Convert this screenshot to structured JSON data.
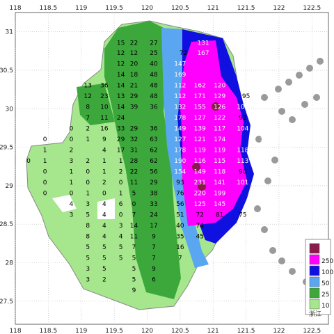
{
  "map": {
    "x_ticks": [
      "118",
      "118.5",
      "119",
      "119.5",
      "120",
      "120.5",
      "121",
      "121.5",
      "122",
      "122.5"
    ],
    "y_ticks": [
      "31",
      "30.5",
      "30",
      "29.5",
      "29",
      "28.5",
      "28",
      "27.5"
    ],
    "lon_range": [
      118,
      122.75
    ],
    "lat_range": [
      27.2,
      31.25
    ],
    "grid": true
  },
  "legend": {
    "items": [
      {
        "label": "",
        "color": "#8b1a4a"
      },
      {
        "label": "250",
        "color": "#ff00ff"
      },
      {
        "label": "100",
        "color": "#1010e0"
      },
      {
        "label": "50",
        "color": "#5aa6f0"
      },
      {
        "label": "25",
        "color": "#3ca83c"
      },
      {
        "label": "10",
        "color": "#a6e68c"
      }
    ]
  },
  "values": [
    {
      "t": "15",
      "lon": 119.6,
      "lat": 30.85
    },
    {
      "t": "22",
      "lon": 119.8,
      "lat": 30.85
    },
    {
      "t": "27",
      "lon": 120.1,
      "lat": 30.85
    },
    {
      "t": "131",
      "lon": 120.85,
      "lat": 30.85
    },
    {
      "t": "12",
      "lon": 119.6,
      "lat": 30.72
    },
    {
      "t": "12",
      "lon": 119.8,
      "lat": 30.72
    },
    {
      "t": "25",
      "lon": 120.1,
      "lat": 30.72
    },
    {
      "t": "72",
      "lon": 120.55,
      "lat": 30.72
    },
    {
      "t": "167",
      "lon": 120.85,
      "lat": 30.72
    },
    {
      "t": "12",
      "lon": 119.6,
      "lat": 30.58
    },
    {
      "t": "20",
      "lon": 119.8,
      "lat": 30.58
    },
    {
      "t": "40",
      "lon": 120.1,
      "lat": 30.58
    },
    {
      "t": "147",
      "lon": 120.5,
      "lat": 30.58
    },
    {
      "t": "14",
      "lon": 119.6,
      "lat": 30.44
    },
    {
      "t": "18",
      "lon": 119.8,
      "lat": 30.44
    },
    {
      "t": "48",
      "lon": 120.1,
      "lat": 30.44
    },
    {
      "t": "169",
      "lon": 120.5,
      "lat": 30.44
    },
    {
      "t": "13",
      "lon": 119.1,
      "lat": 30.3
    },
    {
      "t": "36",
      "lon": 119.35,
      "lat": 30.3
    },
    {
      "t": "14",
      "lon": 119.6,
      "lat": 30.3
    },
    {
      "t": "21",
      "lon": 119.8,
      "lat": 30.3
    },
    {
      "t": "48",
      "lon": 120.1,
      "lat": 30.3
    },
    {
      "t": "112",
      "lon": 120.5,
      "lat": 30.3
    },
    {
      "t": "162",
      "lon": 120.8,
      "lat": 30.3
    },
    {
      "t": "120",
      "lon": 121.1,
      "lat": 30.3
    },
    {
      "t": "12",
      "lon": 119.1,
      "lat": 30.16
    },
    {
      "t": "23",
      "lon": 119.35,
      "lat": 30.16
    },
    {
      "t": "13",
      "lon": 119.6,
      "lat": 30.16
    },
    {
      "t": "29",
      "lon": 119.8,
      "lat": 30.16
    },
    {
      "t": "48",
      "lon": 120.1,
      "lat": 30.16
    },
    {
      "t": "112",
      "lon": 120.5,
      "lat": 30.16
    },
    {
      "t": "171",
      "lon": 120.8,
      "lat": 30.16
    },
    {
      "t": "129",
      "lon": 121.1,
      "lat": 30.16
    },
    {
      "t": "95",
      "lon": 121.5,
      "lat": 30.16
    },
    {
      "t": "8",
      "lon": 119.1,
      "lat": 30.02
    },
    {
      "t": "10",
      "lon": 119.35,
      "lat": 30.02
    },
    {
      "t": "14",
      "lon": 119.6,
      "lat": 30.02
    },
    {
      "t": "39",
      "lon": 119.8,
      "lat": 30.02
    },
    {
      "t": "36",
      "lon": 120.1,
      "lat": 30.02
    },
    {
      "t": "132",
      "lon": 120.5,
      "lat": 30.02
    },
    {
      "t": "155",
      "lon": 120.8,
      "lat": 30.02
    },
    {
      "t": "126",
      "lon": 121.1,
      "lat": 30.02
    },
    {
      "t": "102",
      "lon": 121.45,
      "lat": 30.02
    },
    {
      "t": "7",
      "lon": 119.1,
      "lat": 29.88
    },
    {
      "t": "11",
      "lon": 119.35,
      "lat": 29.88
    },
    {
      "t": "24",
      "lon": 119.6,
      "lat": 29.88
    },
    {
      "t": "178",
      "lon": 120.5,
      "lat": 29.88
    },
    {
      "t": "127",
      "lon": 120.8,
      "lat": 29.88
    },
    {
      "t": "122",
      "lon": 121.1,
      "lat": 29.88
    },
    {
      "t": "92",
      "lon": 121.45,
      "lat": 29.88
    },
    {
      "t": "0",
      "lon": 118.85,
      "lat": 29.74
    },
    {
      "t": "2",
      "lon": 119.1,
      "lat": 29.74
    },
    {
      "t": "16",
      "lon": 119.35,
      "lat": 29.74
    },
    {
      "t": "33",
      "lon": 119.6,
      "lat": 29.74
    },
    {
      "t": "29",
      "lon": 119.8,
      "lat": 29.74
    },
    {
      "t": "36",
      "lon": 120.1,
      "lat": 29.74
    },
    {
      "t": "149",
      "lon": 120.5,
      "lat": 29.74
    },
    {
      "t": "139",
      "lon": 120.8,
      "lat": 29.74
    },
    {
      "t": "117",
      "lon": 121.1,
      "lat": 29.74
    },
    {
      "t": "104",
      "lon": 121.45,
      "lat": 29.74
    },
    {
      "t": "0",
      "lon": 118.45,
      "lat": 29.6
    },
    {
      "t": "0",
      "lon": 118.85,
      "lat": 29.6
    },
    {
      "t": "1",
      "lon": 119.1,
      "lat": 29.6
    },
    {
      "t": "9",
      "lon": 119.35,
      "lat": 29.6
    },
    {
      "t": "29",
      "lon": 119.6,
      "lat": 29.6
    },
    {
      "t": "32",
      "lon": 119.8,
      "lat": 29.6
    },
    {
      "t": "63",
      "lon": 120.1,
      "lat": 29.6
    },
    {
      "t": "127",
      "lon": 120.5,
      "lat": 29.6
    },
    {
      "t": "121",
      "lon": 120.8,
      "lat": 29.6
    },
    {
      "t": "174",
      "lon": 121.1,
      "lat": 29.6
    },
    {
      "t": "106",
      "lon": 121.8,
      "lat": 29.6
    },
    {
      "t": "1",
      "lon": 118.45,
      "lat": 29.46
    },
    {
      "t": "2",
      "lon": 118.85,
      "lat": 29.46
    },
    {
      "t": "4",
      "lon": 119.35,
      "lat": 29.46
    },
    {
      "t": "17",
      "lon": 119.6,
      "lat": 29.46
    },
    {
      "t": "31",
      "lon": 119.8,
      "lat": 29.46
    },
    {
      "t": "62",
      "lon": 120.1,
      "lat": 29.46
    },
    {
      "t": "178",
      "lon": 120.5,
      "lat": 29.46
    },
    {
      "t": "119",
      "lon": 120.8,
      "lat": 29.46
    },
    {
      "t": "119",
      "lon": 121.1,
      "lat": 29.46
    },
    {
      "t": "118",
      "lon": 121.45,
      "lat": 29.46
    },
    {
      "t": "104",
      "lon": 121.8,
      "lat": 29.46
    },
    {
      "t": "0",
      "lon": 118.2,
      "lat": 29.32
    },
    {
      "t": "1",
      "lon": 118.45,
      "lat": 29.32
    },
    {
      "t": "3",
      "lon": 118.85,
      "lat": 29.32
    },
    {
      "t": "2",
      "lon": 119.1,
      "lat": 29.32
    },
    {
      "t": "1",
      "lon": 119.35,
      "lat": 29.32
    },
    {
      "t": "1",
      "lon": 119.6,
      "lat": 29.32
    },
    {
      "t": "28",
      "lon": 119.8,
      "lat": 29.32
    },
    {
      "t": "62",
      "lon": 120.1,
      "lat": 29.32
    },
    {
      "t": "190",
      "lon": 120.5,
      "lat": 29.32
    },
    {
      "t": "116",
      "lon": 120.8,
      "lat": 29.32
    },
    {
      "t": "115",
      "lon": 121.1,
      "lat": 29.32
    },
    {
      "t": "113",
      "lon": 121.45,
      "lat": 29.32
    },
    {
      "t": "0",
      "lon": 118.45,
      "lat": 29.18
    },
    {
      "t": "1",
      "lon": 118.85,
      "lat": 29.18
    },
    {
      "t": "0",
      "lon": 119.1,
      "lat": 29.18
    },
    {
      "t": "1",
      "lon": 119.35,
      "lat": 29.18
    },
    {
      "t": "2",
      "lon": 119.6,
      "lat": 29.18
    },
    {
      "t": "22",
      "lon": 119.8,
      "lat": 29.18
    },
    {
      "t": "56",
      "lon": 120.1,
      "lat": 29.18
    },
    {
      "t": "154",
      "lon": 120.5,
      "lat": 29.18
    },
    {
      "t": "149",
      "lon": 120.8,
      "lat": 29.18
    },
    {
      "t": "118",
      "lon": 121.1,
      "lat": 29.18
    },
    {
      "t": "90",
      "lon": 121.45,
      "lat": 29.18
    },
    {
      "t": "0",
      "lon": 118.45,
      "lat": 29.04
    },
    {
      "t": "1",
      "lon": 118.85,
      "lat": 29.04
    },
    {
      "t": "0",
      "lon": 119.1,
      "lat": 29.04
    },
    {
      "t": "2",
      "lon": 119.35,
      "lat": 29.04
    },
    {
      "t": "0",
      "lon": 119.6,
      "lat": 29.04
    },
    {
      "t": "11",
      "lon": 119.8,
      "lat": 29.04
    },
    {
      "t": "29",
      "lon": 120.1,
      "lat": 29.04
    },
    {
      "t": "93",
      "lon": 120.5,
      "lat": 29.04
    },
    {
      "t": "231",
      "lon": 120.8,
      "lat": 29.04
    },
    {
      "t": "141",
      "lon": 121.1,
      "lat": 29.04
    },
    {
      "t": "101",
      "lon": 121.45,
      "lat": 29.04
    },
    {
      "t": "0",
      "lon": 118.45,
      "lat": 28.9
    },
    {
      "t": "0",
      "lon": 118.85,
      "lat": 28.9
    },
    {
      "t": "1",
      "lon": 119.1,
      "lat": 28.9
    },
    {
      "t": "0",
      "lon": 119.35,
      "lat": 28.9
    },
    {
      "t": "1",
      "lon": 119.6,
      "lat": 28.9
    },
    {
      "t": "5",
      "lon": 119.8,
      "lat": 28.9
    },
    {
      "t": "38",
      "lon": 120.1,
      "lat": 28.9
    },
    {
      "t": "76",
      "lon": 120.5,
      "lat": 28.9
    },
    {
      "t": "220",
      "lon": 120.8,
      "lat": 28.9
    },
    {
      "t": "199",
      "lon": 121.1,
      "lat": 28.9
    },
    {
      "t": "4",
      "lon": 118.85,
      "lat": 28.76
    },
    {
      "t": "3",
      "lon": 119.1,
      "lat": 28.76
    },
    {
      "t": "4",
      "lon": 119.35,
      "lat": 28.76
    },
    {
      "t": "6",
      "lon": 119.6,
      "lat": 28.76
    },
    {
      "t": "0",
      "lon": 119.8,
      "lat": 28.76
    },
    {
      "t": "33",
      "lon": 120.1,
      "lat": 28.76
    },
    {
      "t": "56",
      "lon": 120.5,
      "lat": 28.76
    },
    {
      "t": "125",
      "lon": 120.8,
      "lat": 28.76
    },
    {
      "t": "145",
      "lon": 121.1,
      "lat": 28.76
    },
    {
      "t": "3",
      "lon": 118.85,
      "lat": 28.62
    },
    {
      "t": "5",
      "lon": 119.1,
      "lat": 28.62
    },
    {
      "t": "4",
      "lon": 119.35,
      "lat": 28.62
    },
    {
      "t": "0",
      "lon": 119.6,
      "lat": 28.62
    },
    {
      "t": "7",
      "lon": 119.8,
      "lat": 28.62
    },
    {
      "t": "24",
      "lon": 120.1,
      "lat": 28.62
    },
    {
      "t": "51",
      "lon": 120.5,
      "lat": 28.62
    },
    {
      "t": "72",
      "lon": 120.8,
      "lat": 28.62
    },
    {
      "t": "81",
      "lon": 121.1,
      "lat": 28.62
    },
    {
      "t": "75",
      "lon": 121.45,
      "lat": 28.62
    },
    {
      "t": "8",
      "lon": 119.1,
      "lat": 28.48
    },
    {
      "t": "4",
      "lon": 119.35,
      "lat": 28.48
    },
    {
      "t": "3",
      "lon": 119.6,
      "lat": 28.48
    },
    {
      "t": "14",
      "lon": 119.8,
      "lat": 28.48
    },
    {
      "t": "17",
      "lon": 120.1,
      "lat": 28.48
    },
    {
      "t": "40",
      "lon": 120.5,
      "lat": 28.48
    },
    {
      "t": "74",
      "lon": 120.8,
      "lat": 28.48
    },
    {
      "t": "8",
      "lon": 119.1,
      "lat": 28.34
    },
    {
      "t": "4",
      "lon": 119.35,
      "lat": 28.34
    },
    {
      "t": "4",
      "lon": 119.6,
      "lat": 28.34
    },
    {
      "t": "11",
      "lon": 119.8,
      "lat": 28.34
    },
    {
      "t": "9",
      "lon": 120.1,
      "lat": 28.34
    },
    {
      "t": "35",
      "lon": 120.5,
      "lat": 28.34
    },
    {
      "t": "45",
      "lon": 120.8,
      "lat": 28.34
    },
    {
      "t": "5",
      "lon": 119.1,
      "lat": 28.2
    },
    {
      "t": "5",
      "lon": 119.35,
      "lat": 28.2
    },
    {
      "t": "5",
      "lon": 119.6,
      "lat": 28.2
    },
    {
      "t": "7",
      "lon": 119.8,
      "lat": 28.2
    },
    {
      "t": "7",
      "lon": 120.1,
      "lat": 28.2
    },
    {
      "t": "16",
      "lon": 120.5,
      "lat": 28.2
    },
    {
      "t": "5",
      "lon": 119.1,
      "lat": 28.06
    },
    {
      "t": "5",
      "lon": 119.35,
      "lat": 28.06
    },
    {
      "t": "5",
      "lon": 119.6,
      "lat": 28.06
    },
    {
      "t": "5",
      "lon": 119.8,
      "lat": 28.06
    },
    {
      "t": "7",
      "lon": 120.1,
      "lat": 28.06
    },
    {
      "t": "7",
      "lon": 120.5,
      "lat": 28.06
    },
    {
      "t": "3",
      "lon": 119.1,
      "lat": 27.92
    },
    {
      "t": "5",
      "lon": 119.35,
      "lat": 27.92
    },
    {
      "t": "5",
      "lon": 119.8,
      "lat": 27.92
    },
    {
      "t": "9",
      "lon": 120.1,
      "lat": 27.92
    },
    {
      "t": "3",
      "lon": 119.1,
      "lat": 27.78
    },
    {
      "t": "2",
      "lon": 119.35,
      "lat": 27.78
    },
    {
      "t": "5",
      "lon": 119.8,
      "lat": 27.78
    },
    {
      "t": "6",
      "lon": 120.1,
      "lat": 27.78
    },
    {
      "t": "9",
      "lon": 119.8,
      "lat": 27.64
    }
  ],
  "watermark": {
    "text": "浙江"
  }
}
